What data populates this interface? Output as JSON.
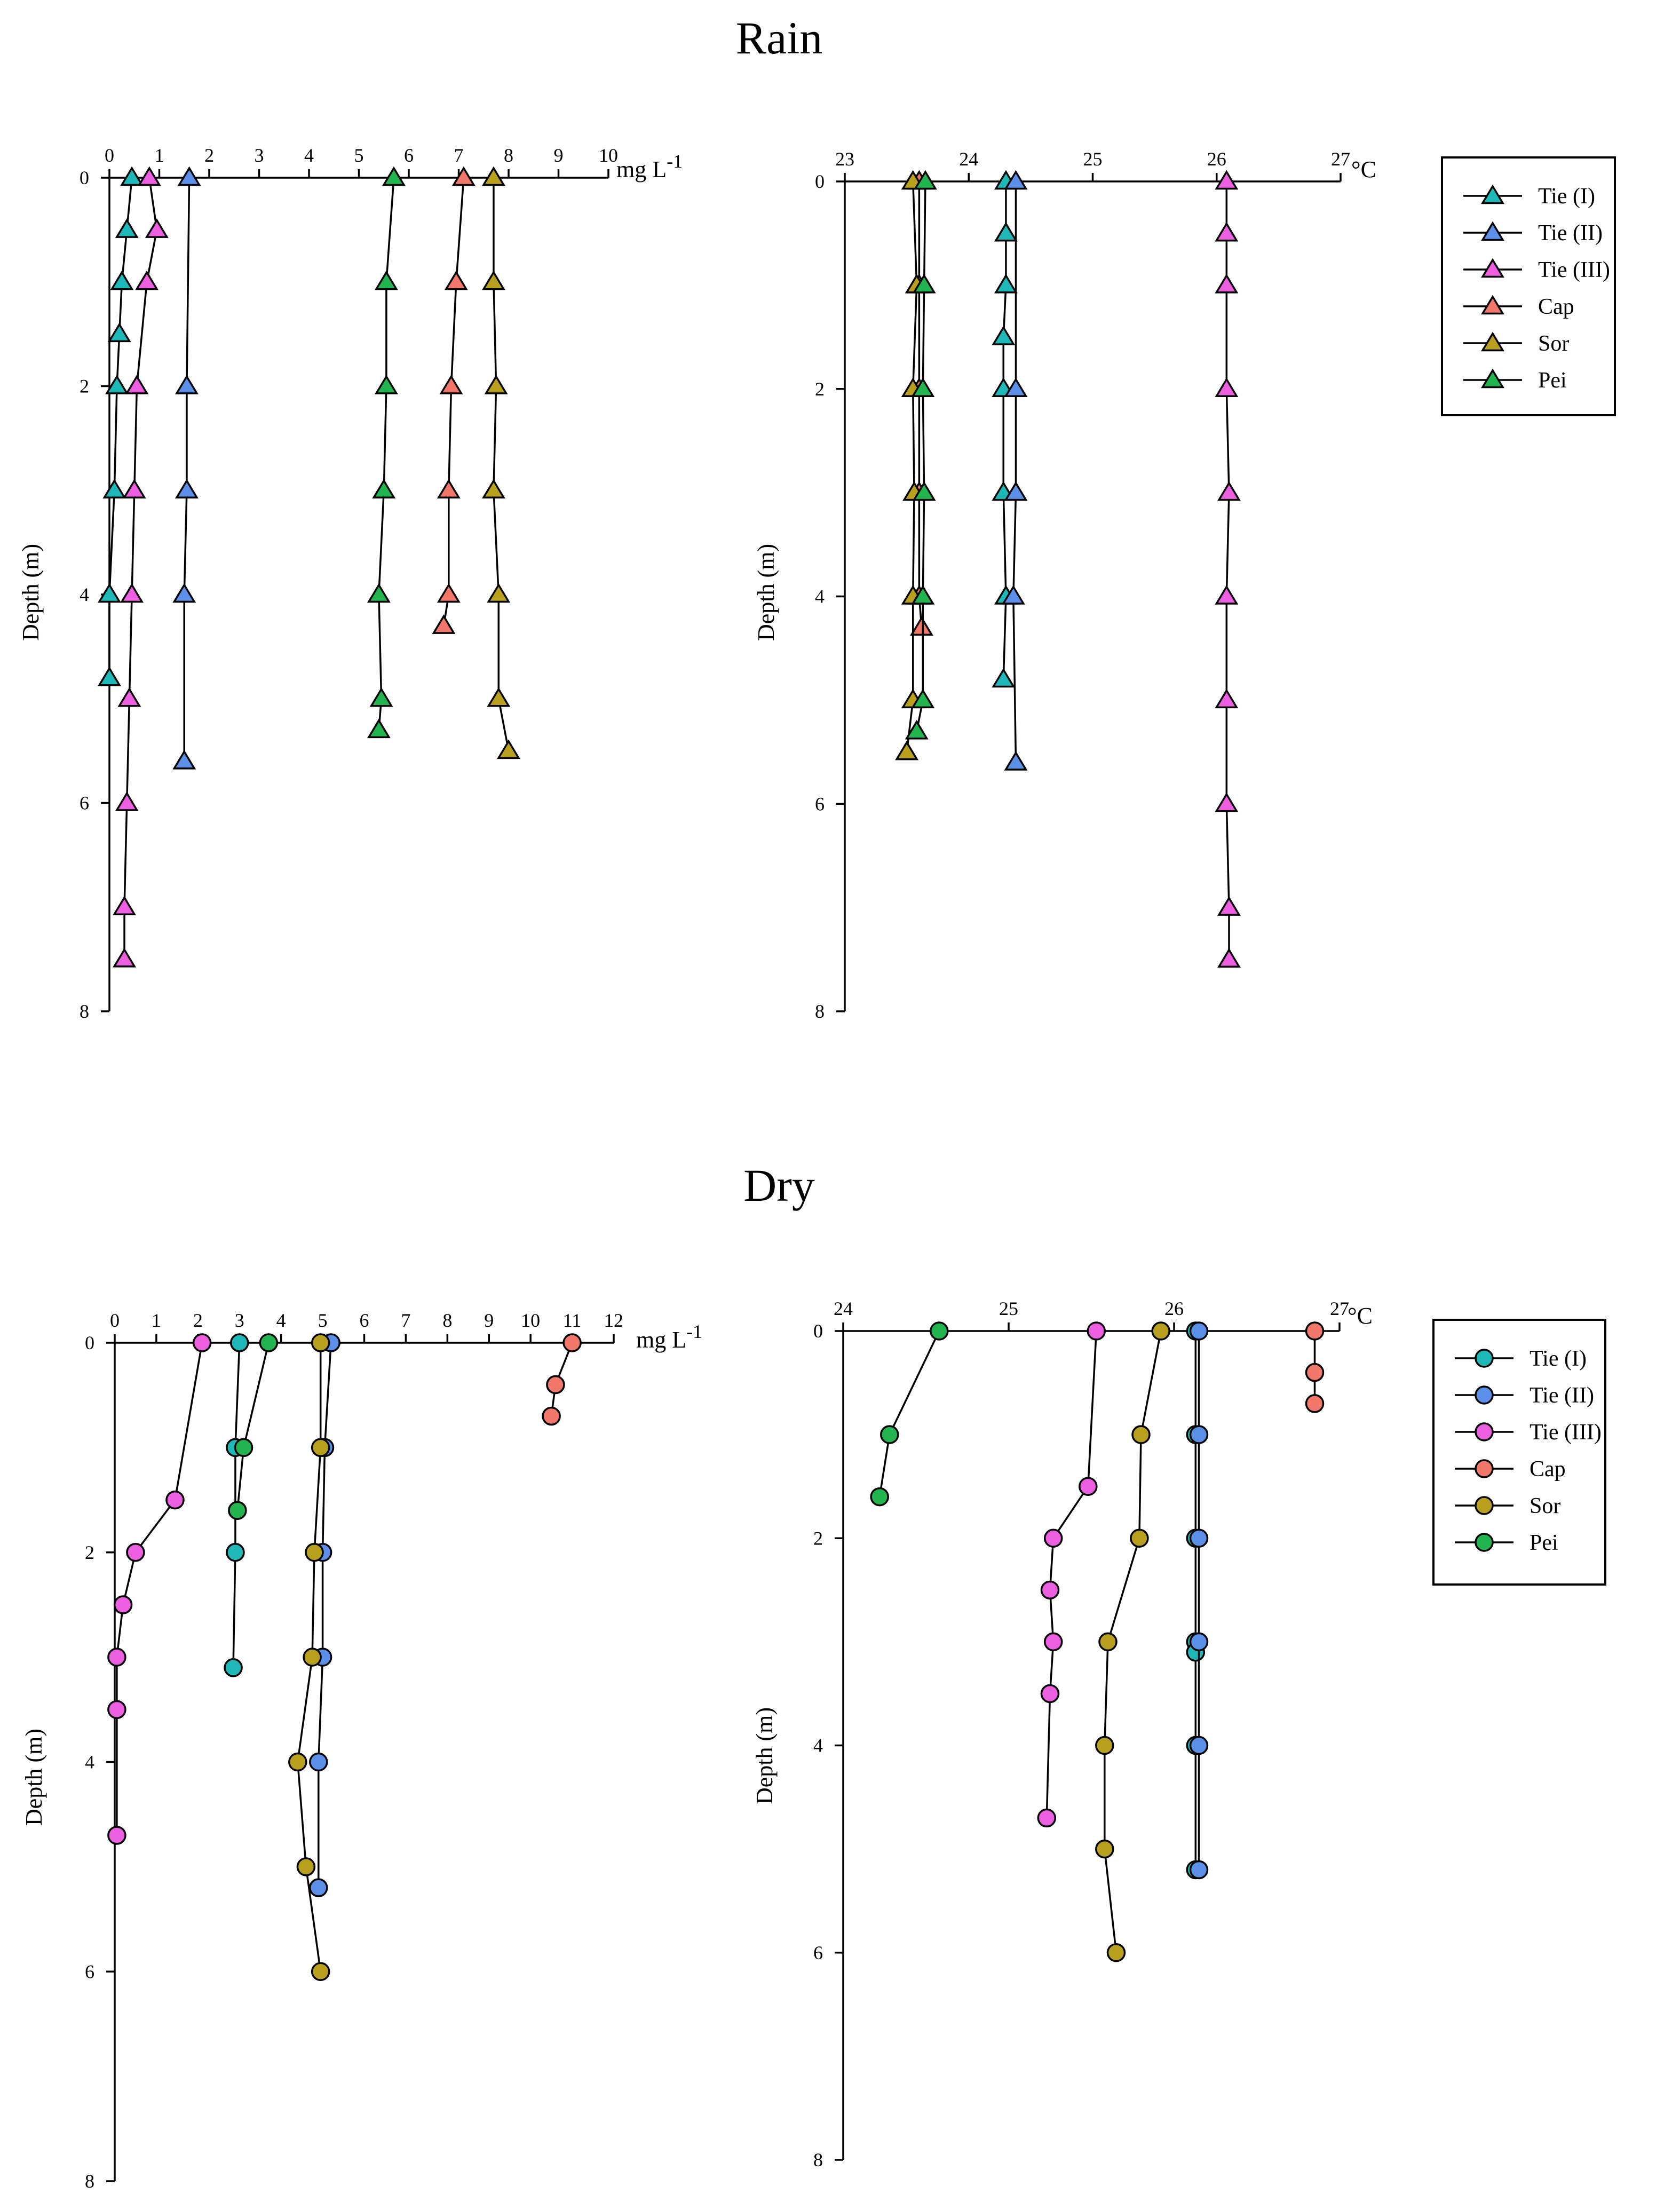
{
  "sections": [
    {
      "title": "Rain"
    },
    {
      "title": "Dry"
    }
  ],
  "legend": [
    {
      "name": "Tie (I)",
      "color": "#1fb8b8"
    },
    {
      "name": "Tie (II)",
      "color": "#5b8fe8"
    },
    {
      "name": "Tie (III)",
      "color": "#ec5fe0"
    },
    {
      "name": "Cap",
      "color": "#f0776a"
    },
    {
      "name": "Sor",
      "color": "#b8a01e"
    },
    {
      "name": "Pei",
      "color": "#22b44f"
    }
  ],
  "chart_data": [
    {
      "id": "rain-do",
      "type": "line",
      "title": "Rain",
      "marker": "triangle",
      "xlabel": "mg L-1",
      "xlabel_main": "mg L",
      "xlabel_sup": "-1",
      "ylabel": "Depth (m)",
      "xlim": [
        0,
        10
      ],
      "ylim": [
        0,
        8
      ],
      "xticks": [
        0,
        1,
        2,
        3,
        4,
        5,
        6,
        7,
        8,
        9,
        10
      ],
      "yticks": [
        0,
        2,
        4,
        6,
        8
      ],
      "series": [
        {
          "name": "Tie (I)",
          "points": [
            [
              0.45,
              0
            ],
            [
              0.35,
              0.5
            ],
            [
              0.25,
              1
            ],
            [
              0.2,
              1.5
            ],
            [
              0.15,
              2
            ],
            [
              0.1,
              3
            ],
            [
              0.0,
              4
            ],
            [
              0.0,
              4.8
            ]
          ]
        },
        {
          "name": "Tie (II)",
          "points": [
            [
              1.6,
              0
            ],
            [
              1.55,
              2
            ],
            [
              1.55,
              3
            ],
            [
              1.5,
              4
            ],
            [
              1.5,
              5.6
            ]
          ]
        },
        {
          "name": "Tie (III)",
          "points": [
            [
              0.8,
              0
            ],
            [
              0.95,
              0.5
            ],
            [
              0.75,
              1
            ],
            [
              0.55,
              2
            ],
            [
              0.5,
              3
            ],
            [
              0.45,
              4
            ],
            [
              0.4,
              5
            ],
            [
              0.35,
              6
            ],
            [
              0.3,
              7
            ],
            [
              0.3,
              7.5
            ]
          ]
        },
        {
          "name": "Cap",
          "points": [
            [
              7.1,
              0
            ],
            [
              6.95,
              1
            ],
            [
              6.85,
              2
            ],
            [
              6.8,
              3
            ],
            [
              6.8,
              4
            ],
            [
              6.7,
              4.3
            ]
          ]
        },
        {
          "name": "Sor",
          "points": [
            [
              7.7,
              0
            ],
            [
              7.7,
              1
            ],
            [
              7.75,
              2
            ],
            [
              7.7,
              3
            ],
            [
              7.8,
              4
            ],
            [
              7.8,
              5
            ],
            [
              8.0,
              5.5
            ]
          ]
        },
        {
          "name": "Pei",
          "points": [
            [
              5.7,
              0
            ],
            [
              5.55,
              1
            ],
            [
              5.55,
              2
            ],
            [
              5.5,
              3
            ],
            [
              5.4,
              4
            ],
            [
              5.45,
              5
            ],
            [
              5.4,
              5.3
            ]
          ]
        }
      ]
    },
    {
      "id": "rain-temp",
      "type": "line",
      "title": "Rain",
      "marker": "triangle",
      "xlabel": "°C",
      "xlabel_main": "°C",
      "xlabel_sup": "",
      "ylabel": "Depth (m)",
      "xlim": [
        23,
        27
      ],
      "ylim": [
        0,
        8
      ],
      "xticks": [
        23,
        24,
        25,
        26,
        27
      ],
      "yticks": [
        0,
        2,
        4,
        6,
        8
      ],
      "series": [
        {
          "name": "Tie (I)",
          "points": [
            [
              24.3,
              0
            ],
            [
              24.3,
              0.5
            ],
            [
              24.3,
              1
            ],
            [
              24.28,
              1.5
            ],
            [
              24.28,
              2
            ],
            [
              24.28,
              3
            ],
            [
              24.3,
              4
            ],
            [
              24.28,
              4.8
            ]
          ]
        },
        {
          "name": "Tie (II)",
          "points": [
            [
              24.38,
              0
            ],
            [
              24.38,
              2
            ],
            [
              24.38,
              3
            ],
            [
              24.36,
              4
            ],
            [
              24.38,
              5.6
            ]
          ]
        },
        {
          "name": "Tie (III)",
          "points": [
            [
              26.08,
              0
            ],
            [
              26.08,
              0.5
            ],
            [
              26.08,
              1
            ],
            [
              26.08,
              2
            ],
            [
              26.1,
              3
            ],
            [
              26.08,
              4
            ],
            [
              26.08,
              5
            ],
            [
              26.08,
              6
            ],
            [
              26.1,
              7
            ],
            [
              26.1,
              7.5
            ]
          ]
        },
        {
          "name": "Cap",
          "points": [
            [
              23.6,
              0
            ],
            [
              23.6,
              1
            ],
            [
              23.6,
              2
            ],
            [
              23.6,
              3
            ],
            [
              23.6,
              4
            ],
            [
              23.62,
              4.3
            ]
          ]
        },
        {
          "name": "Sor",
          "points": [
            [
              23.55,
              0
            ],
            [
              23.58,
              1
            ],
            [
              23.55,
              2
            ],
            [
              23.56,
              3
            ],
            [
              23.55,
              4
            ],
            [
              23.55,
              5
            ],
            [
              23.5,
              5.5
            ]
          ]
        },
        {
          "name": "Pei",
          "points": [
            [
              23.65,
              0
            ],
            [
              23.64,
              1
            ],
            [
              23.63,
              2
            ],
            [
              23.64,
              3
            ],
            [
              23.63,
              4
            ],
            [
              23.63,
              5
            ],
            [
              23.58,
              5.3
            ]
          ]
        }
      ]
    },
    {
      "id": "dry-do",
      "type": "line",
      "title": "Dry",
      "marker": "circle",
      "xlabel": "mg L-1",
      "xlabel_main": "mg L",
      "xlabel_sup": "-1",
      "ylabel": "Depth (m)",
      "xlim": [
        0,
        12
      ],
      "ylim": [
        0,
        8
      ],
      "xticks": [
        0,
        1,
        2,
        3,
        4,
        5,
        6,
        7,
        8,
        9,
        10,
        11,
        12
      ],
      "yticks": [
        0,
        2,
        4,
        6,
        8
      ],
      "series": [
        {
          "name": "Tie (I)",
          "points": [
            [
              3.0,
              0
            ],
            [
              2.9,
              1
            ],
            [
              2.9,
              2
            ],
            [
              2.85,
              3.1
            ]
          ]
        },
        {
          "name": "Tie (II)",
          "points": [
            [
              5.2,
              0
            ],
            [
              5.05,
              1
            ],
            [
              5.0,
              2
            ],
            [
              5.0,
              3
            ],
            [
              4.9,
              4
            ],
            [
              4.9,
              5.2
            ]
          ]
        },
        {
          "name": "Tie (III)",
          "points": [
            [
              2.1,
              0
            ],
            [
              1.45,
              1.5
            ],
            [
              0.5,
              2
            ],
            [
              0.2,
              2.5
            ],
            [
              0.05,
              3
            ],
            [
              0.05,
              3.5
            ],
            [
              0.05,
              4.7
            ]
          ]
        },
        {
          "name": "Cap",
          "points": [
            [
              11.0,
              0
            ],
            [
              10.6,
              0.4
            ],
            [
              10.5,
              0.7
            ]
          ]
        },
        {
          "name": "Sor",
          "points": [
            [
              4.95,
              0
            ],
            [
              4.95,
              1
            ],
            [
              4.8,
              2
            ],
            [
              4.75,
              3
            ],
            [
              4.4,
              4
            ],
            [
              4.6,
              5
            ],
            [
              4.95,
              6
            ]
          ]
        },
        {
          "name": "Pei",
          "points": [
            [
              3.7,
              0
            ],
            [
              3.1,
              1
            ],
            [
              2.95,
              1.6
            ]
          ]
        }
      ]
    },
    {
      "id": "dry-temp",
      "type": "line",
      "title": "Dry",
      "marker": "circle",
      "xlabel": "°C",
      "xlabel_main": "°C",
      "xlabel_sup": "",
      "ylabel": "Depth (m)",
      "xlim": [
        24,
        27
      ],
      "ylim": [
        0,
        8
      ],
      "xticks": [
        24,
        25,
        26,
        27
      ],
      "yticks": [
        0,
        2,
        4,
        6,
        8
      ],
      "series": [
        {
          "name": "Tie (I)",
          "points": [
            [
              26.13,
              0
            ],
            [
              26.13,
              1
            ],
            [
              26.13,
              2
            ],
            [
              26.13,
              3
            ],
            [
              26.13,
              3.1
            ],
            [
              26.13,
              4
            ],
            [
              26.13,
              5.2
            ]
          ]
        },
        {
          "name": "Tie (II)",
          "points": [
            [
              26.15,
              0
            ],
            [
              26.15,
              1
            ],
            [
              26.15,
              2
            ],
            [
              26.15,
              3
            ],
            [
              26.15,
              4
            ],
            [
              26.15,
              5.2
            ]
          ]
        },
        {
          "name": "Tie (III)",
          "points": [
            [
              25.53,
              0
            ],
            [
              25.48,
              1.5
            ],
            [
              25.27,
              2
            ],
            [
              25.25,
              2.5
            ],
            [
              25.27,
              3
            ],
            [
              25.25,
              3.5
            ],
            [
              25.23,
              4.7
            ]
          ]
        },
        {
          "name": "Cap",
          "points": [
            [
              26.85,
              0
            ],
            [
              26.85,
              0.4
            ],
            [
              26.85,
              0.7
            ]
          ]
        },
        {
          "name": "Sor",
          "points": [
            [
              25.92,
              0
            ],
            [
              25.8,
              1
            ],
            [
              25.79,
              2
            ],
            [
              25.6,
              3
            ],
            [
              25.58,
              4
            ],
            [
              25.58,
              5
            ],
            [
              25.65,
              6
            ]
          ]
        },
        {
          "name": "Pei",
          "points": [
            [
              24.58,
              0
            ],
            [
              24.28,
              1
            ],
            [
              24.22,
              1.6
            ]
          ]
        }
      ]
    }
  ]
}
